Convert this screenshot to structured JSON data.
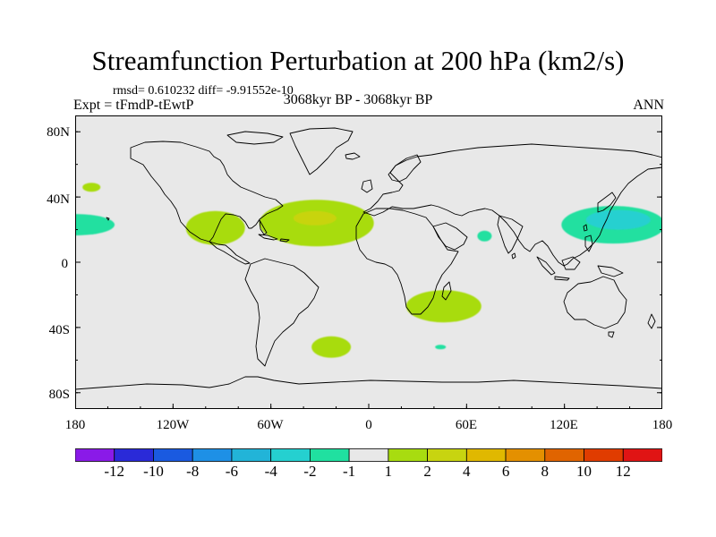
{
  "title": "Streamfunction Perturbation at 200 hPa (km2/s)",
  "stats": "rmsd= 0.610232 diff= -9.91552e-10",
  "left_label": "Expt = tFmdP-tEwtP",
  "center_label": "3068kyr BP - 3068kyr BP",
  "right_label": "ANN",
  "map": {
    "background_color": "#e8e8e8",
    "coastline_color": "#000000",
    "lat_ticks": [
      "80N",
      "40N",
      "0",
      "40S",
      "80S"
    ],
    "lon_ticks": [
      "180",
      "120W",
      "60W",
      "0",
      "60E",
      "120E",
      "180"
    ],
    "anomalies": [
      {
        "label": "central Pacific west of Hawaii",
        "lon": -180,
        "lat": 23,
        "value": -1.5
      },
      {
        "label": "North Pacific small patch",
        "lon": -170,
        "lat": 46,
        "value": 1.5
      },
      {
        "label": "Gulf of Mexico / Central America",
        "lon": -94,
        "lat": 21,
        "value": 1.5
      },
      {
        "label": "subtropical North Atlantic",
        "lon": -32,
        "lat": 24,
        "value": 1.5
      },
      {
        "label": "subtropical North Atlantic core",
        "lon": -33,
        "lat": 27,
        "value": 3
      },
      {
        "label": "Arabian Sea",
        "lon": 71,
        "lat": 16,
        "value": -1.5
      },
      {
        "label": "western North Pacific",
        "lon": 150,
        "lat": 23,
        "value": -1.5
      },
      {
        "label": "western North Pacific core",
        "lon": 153,
        "lat": 26,
        "value": -3
      },
      {
        "label": "southern Africa / Indian Ocean",
        "lon": 46,
        "lat": -27,
        "value": 1.5
      },
      {
        "label": "South Atlantic",
        "lon": -23,
        "lat": -52,
        "value": 1.5
      },
      {
        "label": "southern Indian Ocean small patch",
        "lon": 44,
        "lat": -52,
        "value": -1.5
      }
    ]
  },
  "colorbar": {
    "colors": [
      "#8a1ae8",
      "#2a2ad8",
      "#1a5ae0",
      "#1e90e6",
      "#22b4d8",
      "#25d0d0",
      "#20e0a0",
      "#e8e8e8",
      "#a8dc10",
      "#c8d410",
      "#e0b800",
      "#e49000",
      "#e06400",
      "#e03c00",
      "#e01414"
    ],
    "labels": [
      "-12",
      "-10",
      "-8",
      "-6",
      "-4",
      "-2",
      "-1",
      "1",
      "2",
      "4",
      "6",
      "8",
      "10",
      "12"
    ]
  }
}
